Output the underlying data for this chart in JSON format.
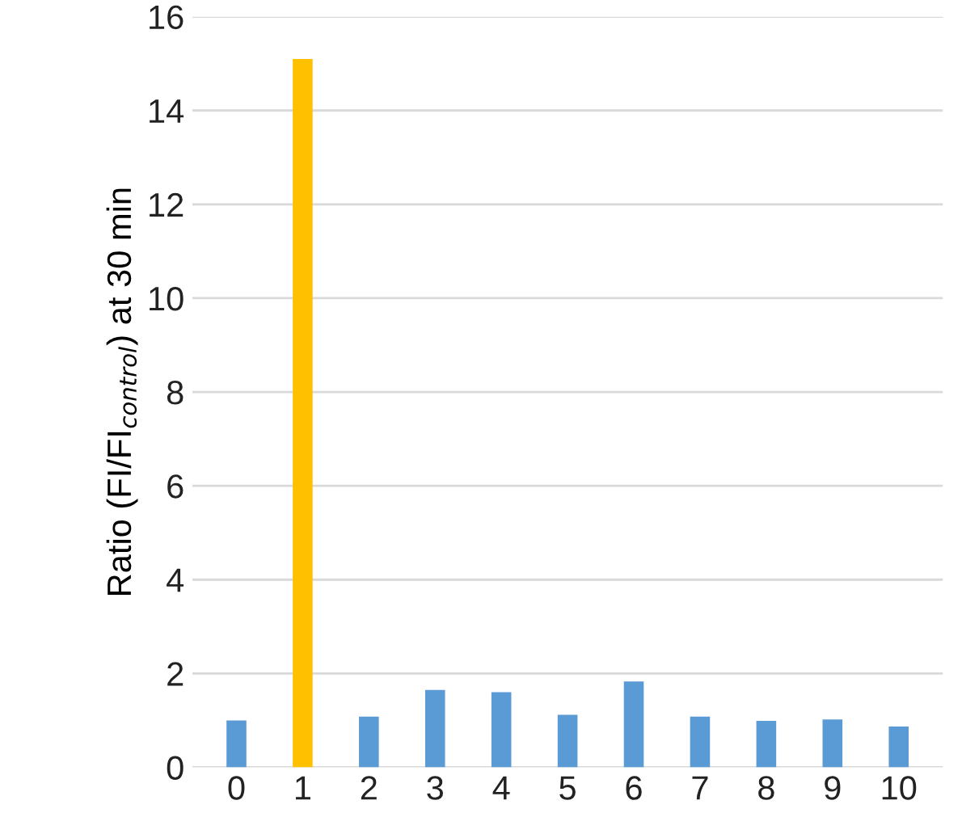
{
  "chart_data": {
    "type": "bar",
    "ylabel": "Ratio (FI/FI$_{control}$) at 30 min",
    "categories": [
      "0",
      "1",
      "2",
      "3",
      "4",
      "5",
      "6",
      "7",
      "8",
      "9",
      "10"
    ],
    "values": [
      1.0,
      15.1,
      1.08,
      1.65,
      1.6,
      1.12,
      1.83,
      1.08,
      0.99,
      1.02,
      0.87
    ],
    "colors": [
      "#5b9bd5",
      "#ffc000",
      "#5b9bd5",
      "#5b9bd5",
      "#5b9bd5",
      "#5b9bd5",
      "#5b9bd5",
      "#5b9bd5",
      "#5b9bd5",
      "#5b9bd5",
      "#5b9bd5"
    ],
    "ylim": [
      0,
      16
    ],
    "yticks": [
      0,
      2,
      4,
      6,
      8,
      10,
      12,
      14,
      16
    ],
    "grid": "y"
  }
}
